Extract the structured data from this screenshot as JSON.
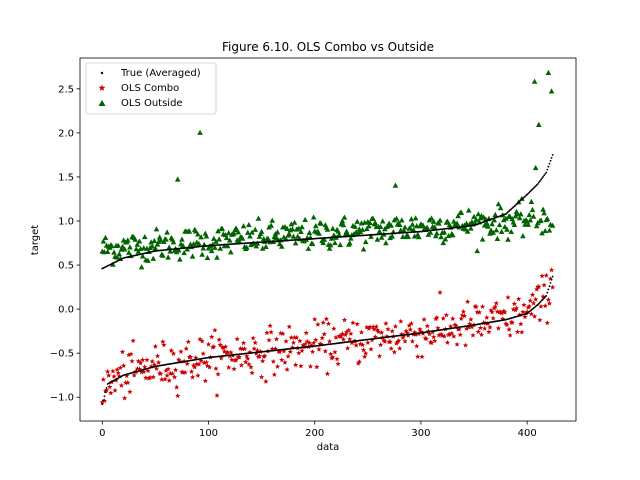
{
  "chart_data": {
    "type": "scatter",
    "title": "Figure 6.10. OLS Combo vs Outside",
    "xlabel": "data",
    "ylabel": "target",
    "xlim": [
      -21,
      446
    ],
    "ylim": [
      -1.27,
      2.85
    ],
    "xticks": [
      0,
      100,
      200,
      300,
      400
    ],
    "yticks": [
      -1.0,
      -0.5,
      0.0,
      0.5,
      1.0,
      1.5,
      2.0,
      2.5
    ],
    "ytick_labels": [
      "−1.0",
      "−0.5",
      "0.0",
      "0.5",
      "1.0",
      "1.5",
      "2.0",
      "2.5"
    ],
    "legend_position": "upper-left",
    "n_points": 425,
    "series": [
      {
        "name": "True (Averaged)",
        "marker": "dot",
        "color": "#000000",
        "description": "Sorted ascending lines: upper curve from 0.46 to 1.75, lower curve from -1.08 to 0.37",
        "upper_curve": {
          "x": [
            0,
            20,
            50,
            100,
            200,
            300,
            350,
            380,
            400,
            410,
            418,
            424
          ],
          "y": [
            0.46,
            0.58,
            0.66,
            0.72,
            0.8,
            0.88,
            0.95,
            1.08,
            1.3,
            1.42,
            1.55,
            1.75
          ]
        },
        "lower_curve": {
          "x": [
            0,
            5,
            20,
            50,
            100,
            200,
            300,
            350,
            380,
            400,
            410,
            418,
            424
          ],
          "y": [
            -1.08,
            -0.85,
            -0.75,
            -0.65,
            -0.55,
            -0.42,
            -0.27,
            -0.18,
            -0.12,
            -0.05,
            0.05,
            0.15,
            0.37
          ]
        }
      },
      {
        "name": "OLS Combo",
        "marker": "star",
        "color": "#cc0000",
        "description": "Scattered around the lower curve, spread about ±0.15"
      },
      {
        "name": "OLS Outside",
        "marker": "triangle",
        "color": "#006400",
        "description": "Scattered around 0.6 to 1.1, rising slightly with index",
        "outliers": [
          {
            "x": 71,
            "y": 1.47
          },
          {
            "x": 92,
            "y": 2.0
          },
          {
            "x": 276,
            "y": 1.4
          },
          {
            "x": 407,
            "y": 2.58
          },
          {
            "x": 420,
            "y": 2.68
          },
          {
            "x": 411,
            "y": 2.09
          },
          {
            "x": 423,
            "y": 2.47
          },
          {
            "x": 408,
            "y": 1.6
          }
        ]
      }
    ]
  }
}
